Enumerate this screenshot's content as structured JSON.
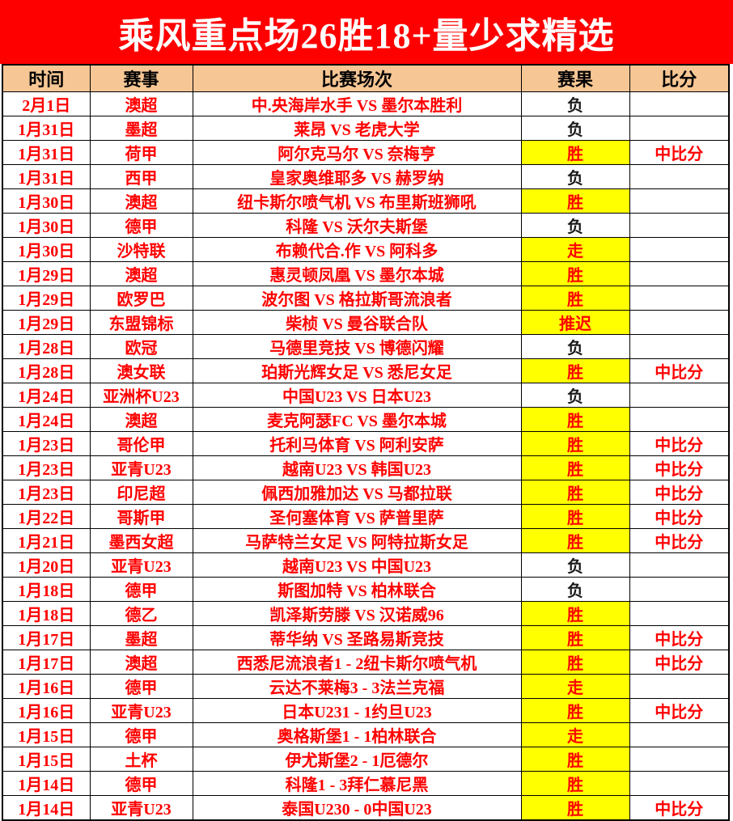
{
  "title": "乘风重点场26胜18+量少求精选",
  "colors": {
    "banner_background": "#fe0000",
    "banner_text": "#ffffff",
    "header_background": "#f6c694",
    "highlight_background": "#ffff00",
    "accent_text": "#ff0000",
    "loss_text": "#1a1a1a"
  },
  "table": {
    "columns": [
      "时间",
      "赛事",
      "比赛场次",
      "赛果",
      "比分"
    ],
    "rows": [
      {
        "date": "2月1日",
        "league": "澳超",
        "match": "中.央海岸水手 VS 墨尔本胜利",
        "result": "负",
        "highlighted": false,
        "score": ""
      },
      {
        "date": "1月31日",
        "league": "墨超",
        "match": "莱昂 VS 老虎大学",
        "result": "负",
        "highlighted": false,
        "score": ""
      },
      {
        "date": "1月31日",
        "league": "荷甲",
        "match": "阿尔克马尔 VS 奈梅亨",
        "result": "胜",
        "highlighted": true,
        "score": "中比分"
      },
      {
        "date": "1月31日",
        "league": "西甲",
        "match": "皇家奥维耶多 VS 赫罗纳",
        "result": "负",
        "highlighted": false,
        "score": ""
      },
      {
        "date": "1月30日",
        "league": "澳超",
        "match": "纽卡斯尔喷气机 VS 布里斯班狮吼",
        "result": "胜",
        "highlighted": true,
        "score": ""
      },
      {
        "date": "1月30日",
        "league": "德甲",
        "match": "科隆 VS 沃尔夫斯堡",
        "result": "负",
        "highlighted": false,
        "score": ""
      },
      {
        "date": "1月30日",
        "league": "沙特联",
        "match": "布赖代合.作 VS 阿科多",
        "result": "走",
        "highlighted": true,
        "score": ""
      },
      {
        "date": "1月29日",
        "league": "澳超",
        "match": "惠灵顿凤凰 VS 墨尔本城",
        "result": "胜",
        "highlighted": true,
        "score": ""
      },
      {
        "date": "1月29日",
        "league": "欧罗巴",
        "match": "波尔图 VS 格拉斯哥流浪者",
        "result": "胜",
        "highlighted": true,
        "score": ""
      },
      {
        "date": "1月29日",
        "league": "东盟锦标",
        "match": "柴桢 VS 曼谷联合队",
        "result": "推迟",
        "highlighted": true,
        "score": ""
      },
      {
        "date": "1月28日",
        "league": "欧冠",
        "match": "马德里竞技 VS 博德闪耀",
        "result": "负",
        "highlighted": false,
        "score": ""
      },
      {
        "date": "1月28日",
        "league": "澳女联",
        "match": "珀斯光辉女足 VS 悉尼女足",
        "result": "胜",
        "highlighted": true,
        "score": "中比分"
      },
      {
        "date": "1月24日",
        "league": "亚洲杯U23",
        "match": "中国U23 VS 日本U23",
        "result": "负",
        "highlighted": false,
        "score": ""
      },
      {
        "date": "1月24日",
        "league": "澳超",
        "match": "麦克阿瑟FC VS 墨尔本城",
        "result": "胜",
        "highlighted": true,
        "score": ""
      },
      {
        "date": "1月23日",
        "league": "哥伦甲",
        "match": "托利马体育 VS 阿利安萨",
        "result": "胜",
        "highlighted": true,
        "score": "中比分"
      },
      {
        "date": "1月23日",
        "league": "亚青U23",
        "match": "越南U23 VS 韩国U23",
        "result": "胜",
        "highlighted": true,
        "score": "中比分"
      },
      {
        "date": "1月23日",
        "league": "印尼超",
        "match": "佩西加雅加达 VS 马都拉联",
        "result": "胜",
        "highlighted": true,
        "score": "中比分"
      },
      {
        "date": "1月22日",
        "league": "哥斯甲",
        "match": "圣何塞体育 VS 萨普里萨",
        "result": "胜",
        "highlighted": true,
        "score": "中比分"
      },
      {
        "date": "1月21日",
        "league": "墨西女超",
        "match": "马萨特兰女足 VS 阿特拉斯女足",
        "result": "胜",
        "highlighted": true,
        "score": "中比分"
      },
      {
        "date": "1月20日",
        "league": "亚青U23",
        "match": "越南U23 VS 中国U23",
        "result": "负",
        "highlighted": false,
        "score": ""
      },
      {
        "date": "1月18日",
        "league": "德甲",
        "match": "斯图加特 VS 柏林联合",
        "result": "负",
        "highlighted": false,
        "score": ""
      },
      {
        "date": "1月18日",
        "league": "德乙",
        "match": "凯泽斯劳滕 VS 汉诺威96",
        "result": "胜",
        "highlighted": true,
        "score": ""
      },
      {
        "date": "1月17日",
        "league": "墨超",
        "match": "蒂华纳 VS 圣路易斯竞技",
        "result": "胜",
        "highlighted": true,
        "score": "中比分"
      },
      {
        "date": "1月17日",
        "league": "澳超",
        "match": "西悉尼流浪者1 - 2纽卡斯尔喷气机",
        "result": "胜",
        "highlighted": true,
        "score": "中比分"
      },
      {
        "date": "1月16日",
        "league": "德甲",
        "match": "云达不莱梅3 - 3法兰克福",
        "result": "走",
        "highlighted": true,
        "score": ""
      },
      {
        "date": "1月16日",
        "league": "亚青U23",
        "match": "日本U231 - 1约旦U23",
        "result": "胜",
        "highlighted": true,
        "score": "中比分"
      },
      {
        "date": "1月15日",
        "league": "德甲",
        "match": "奥格斯堡1 - 1柏林联合",
        "result": "走",
        "highlighted": true,
        "score": ""
      },
      {
        "date": "1月15日",
        "league": "土杯",
        "match": "伊尤斯堡2 - 1厄德尔",
        "result": "胜",
        "highlighted": true,
        "score": ""
      },
      {
        "date": "1月14日",
        "league": "德甲",
        "match": "科隆1 - 3拜仁慕尼黑",
        "result": "胜",
        "highlighted": true,
        "score": ""
      },
      {
        "date": "1月14日",
        "league": "亚青U23",
        "match": "泰国U230 - 0中国U23",
        "result": "胜",
        "highlighted": true,
        "score": "中比分"
      }
    ]
  }
}
